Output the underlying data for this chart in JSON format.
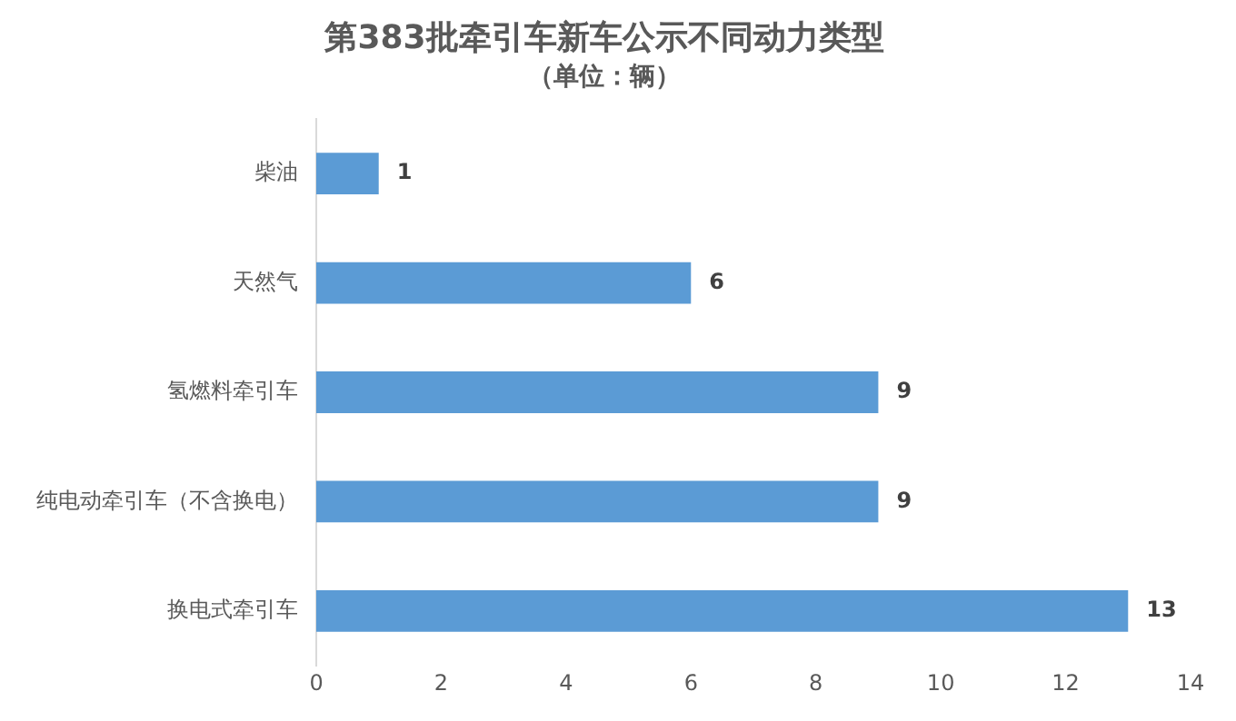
{
  "chart_data": {
    "type": "bar",
    "orientation": "horizontal",
    "title": "第383批牵引车新车公示不同动力类型",
    "subtitle": "（单位：辆）",
    "categories": [
      "柴油",
      "天然气",
      "氢燃料牵引车",
      "纯电动牵引车（不含换电）",
      "换电式牵引车"
    ],
    "values": [
      1,
      6,
      9,
      9,
      13
    ],
    "color": "#5b9bd5",
    "xlim": [
      0,
      14
    ],
    "xticks": [
      0,
      2,
      4,
      6,
      8,
      10,
      12,
      14
    ],
    "grid": false,
    "legend": false,
    "data_labels": true
  }
}
